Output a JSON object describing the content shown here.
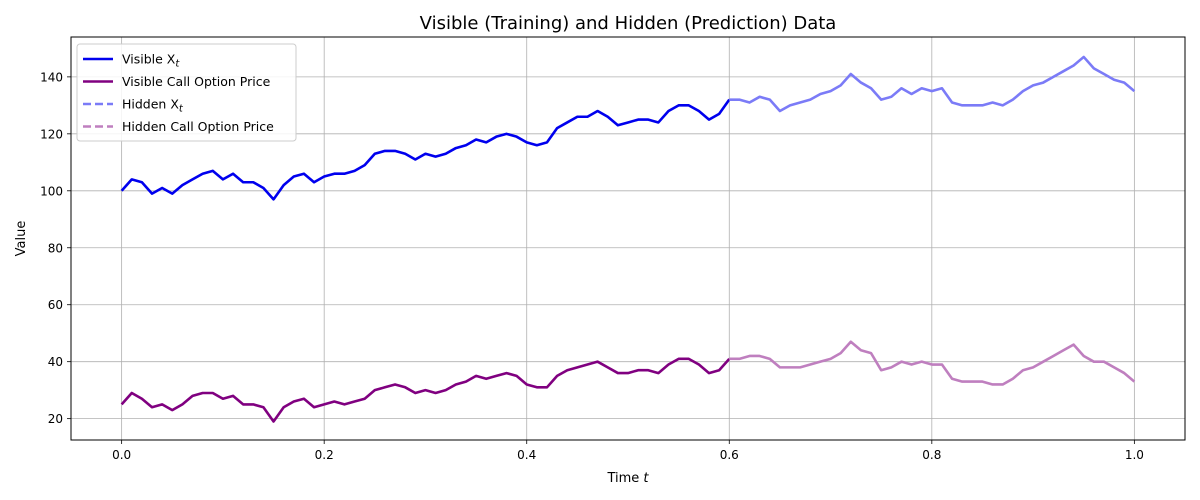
{
  "chart_data": {
    "type": "line",
    "title": "Visible (Training) and Hidden (Prediction) Data",
    "xlabel": "Time t",
    "ylabel": "Value",
    "xlim": [
      -0.05,
      1.05
    ],
    "ylim": [
      12.5,
      154
    ],
    "xticks": [
      0.0,
      0.2,
      0.4,
      0.6,
      0.8,
      1.0
    ],
    "xtick_labels": [
      "0.0",
      "0.2",
      "0.4",
      "0.6",
      "0.8",
      "1.0"
    ],
    "yticks": [
      20,
      40,
      60,
      80,
      100,
      120,
      140
    ],
    "ytick_labels": [
      "20",
      "40",
      "60",
      "80",
      "100",
      "120",
      "140"
    ],
    "grid": true,
    "legend_position": "top-left",
    "series": [
      {
        "name": "Visible X_t",
        "name_main": "Visible X",
        "name_sub": "t",
        "color": "#0000ee",
        "style": "solid",
        "x": [
          0.0,
          0.01,
          0.02,
          0.03,
          0.04,
          0.05,
          0.06,
          0.07,
          0.08,
          0.09,
          0.1,
          0.11,
          0.12,
          0.13,
          0.14,
          0.15,
          0.16,
          0.17,
          0.18,
          0.19,
          0.2,
          0.21,
          0.22,
          0.23,
          0.24,
          0.25,
          0.26,
          0.27,
          0.28,
          0.29,
          0.3,
          0.31,
          0.32,
          0.33,
          0.34,
          0.35,
          0.36,
          0.37,
          0.38,
          0.39,
          0.4,
          0.41,
          0.42,
          0.43,
          0.44,
          0.45,
          0.46,
          0.47,
          0.48,
          0.49,
          0.5,
          0.51,
          0.52,
          0.53,
          0.54,
          0.55,
          0.56,
          0.57,
          0.58,
          0.59,
          0.6
        ],
        "y": [
          100,
          104,
          103,
          99,
          101,
          99,
          102,
          104,
          106,
          107,
          104,
          106,
          103,
          103,
          101,
          97,
          102,
          105,
          106,
          103,
          105,
          106,
          106,
          107,
          109,
          113,
          114,
          114,
          113,
          111,
          113,
          112,
          113,
          115,
          116,
          118,
          117,
          119,
          120,
          119,
          117,
          116,
          117,
          122,
          124,
          126,
          126,
          128,
          126,
          123,
          124,
          125,
          125,
          124,
          128,
          130,
          130,
          128,
          125,
          127,
          132
        ]
      },
      {
        "name": "Visible Call Option Price",
        "color": "#800080",
        "style": "solid",
        "x": [
          0.0,
          0.01,
          0.02,
          0.03,
          0.04,
          0.05,
          0.06,
          0.07,
          0.08,
          0.09,
          0.1,
          0.11,
          0.12,
          0.13,
          0.14,
          0.15,
          0.16,
          0.17,
          0.18,
          0.19,
          0.2,
          0.21,
          0.22,
          0.23,
          0.24,
          0.25,
          0.26,
          0.27,
          0.28,
          0.29,
          0.3,
          0.31,
          0.32,
          0.33,
          0.34,
          0.35,
          0.36,
          0.37,
          0.38,
          0.39,
          0.4,
          0.41,
          0.42,
          0.43,
          0.44,
          0.45,
          0.46,
          0.47,
          0.48,
          0.49,
          0.5,
          0.51,
          0.52,
          0.53,
          0.54,
          0.55,
          0.56,
          0.57,
          0.58,
          0.59,
          0.6
        ],
        "y": [
          25,
          29,
          27,
          24,
          25,
          23,
          25,
          28,
          29,
          29,
          27,
          28,
          25,
          25,
          24,
          19,
          24,
          26,
          27,
          24,
          25,
          26,
          25,
          26,
          27,
          30,
          31,
          32,
          31,
          29,
          30,
          29,
          30,
          32,
          33,
          35,
          34,
          35,
          36,
          35,
          32,
          31,
          31,
          35,
          37,
          38,
          39,
          40,
          38,
          36,
          36,
          37,
          37,
          36,
          39,
          41,
          41,
          39,
          36,
          37,
          41
        ]
      },
      {
        "name": "Hidden X_t",
        "name_main": "Hidden X",
        "name_sub": "t",
        "color": "#7b7bf7",
        "style": "dashed",
        "x": [
          0.6,
          0.61,
          0.62,
          0.63,
          0.64,
          0.65,
          0.66,
          0.67,
          0.68,
          0.69,
          0.7,
          0.71,
          0.72,
          0.73,
          0.74,
          0.75,
          0.76,
          0.77,
          0.78,
          0.79,
          0.8,
          0.81,
          0.82,
          0.83,
          0.84,
          0.85,
          0.86,
          0.87,
          0.88,
          0.89,
          0.9,
          0.91,
          0.92,
          0.93,
          0.94,
          0.95,
          0.96,
          0.97,
          0.98,
          0.99,
          1.0
        ],
        "y": [
          132,
          132,
          131,
          133,
          132,
          128,
          130,
          131,
          132,
          134,
          135,
          137,
          141,
          138,
          136,
          132,
          133,
          136,
          134,
          136,
          135,
          136,
          131,
          130,
          130,
          130,
          131,
          130,
          132,
          135,
          137,
          138,
          140,
          142,
          144,
          147,
          143,
          141,
          139,
          138,
          135
        ]
      },
      {
        "name": "Hidden Call Option Price",
        "color": "#bf7fbf",
        "style": "dashed",
        "x": [
          0.6,
          0.61,
          0.62,
          0.63,
          0.64,
          0.65,
          0.66,
          0.67,
          0.68,
          0.69,
          0.7,
          0.71,
          0.72,
          0.73,
          0.74,
          0.75,
          0.76,
          0.77,
          0.78,
          0.79,
          0.8,
          0.81,
          0.82,
          0.83,
          0.84,
          0.85,
          0.86,
          0.87,
          0.88,
          0.89,
          0.9,
          0.91,
          0.92,
          0.93,
          0.94,
          0.95,
          0.96,
          0.97,
          0.98,
          0.99,
          1.0
        ],
        "y": [
          41,
          41,
          42,
          42,
          41,
          38,
          38,
          38,
          39,
          40,
          41,
          43,
          47,
          44,
          43,
          37,
          38,
          40,
          39,
          40,
          39,
          39,
          34,
          33,
          33,
          33,
          32,
          32,
          34,
          37,
          38,
          40,
          42,
          44,
          46,
          42,
          40,
          40,
          38,
          36,
          33
        ]
      }
    ]
  }
}
